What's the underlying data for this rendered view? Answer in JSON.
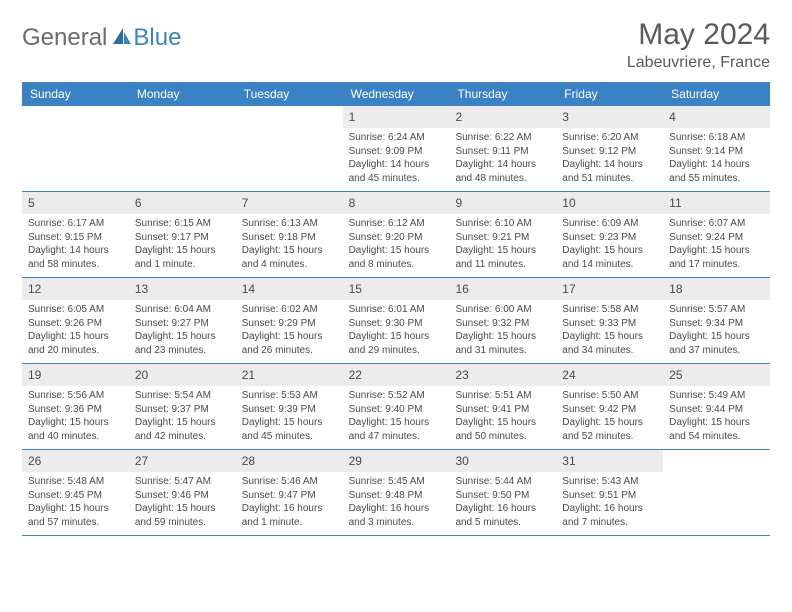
{
  "logo": {
    "part1": "General",
    "part2": "Blue"
  },
  "title": "May 2024",
  "location": "Labeuvriere, France",
  "day_headers": [
    "Sunday",
    "Monday",
    "Tuesday",
    "Wednesday",
    "Thursday",
    "Friday",
    "Saturday"
  ],
  "colors": {
    "header_bg": "#3b82c4",
    "header_text": "#ffffff",
    "daynum_bg": "#ececec",
    "text": "#4a4a4a",
    "logo_gray": "#6b6b6b",
    "logo_blue": "#3b82c4",
    "border": "#3b82c4"
  },
  "weeks": [
    [
      {
        "n": "",
        "sr": "",
        "ss": "",
        "dl": ""
      },
      {
        "n": "",
        "sr": "",
        "ss": "",
        "dl": ""
      },
      {
        "n": "",
        "sr": "",
        "ss": "",
        "dl": ""
      },
      {
        "n": "1",
        "sr": "Sunrise: 6:24 AM",
        "ss": "Sunset: 9:09 PM",
        "dl": "Daylight: 14 hours and 45 minutes."
      },
      {
        "n": "2",
        "sr": "Sunrise: 6:22 AM",
        "ss": "Sunset: 9:11 PM",
        "dl": "Daylight: 14 hours and 48 minutes."
      },
      {
        "n": "3",
        "sr": "Sunrise: 6:20 AM",
        "ss": "Sunset: 9:12 PM",
        "dl": "Daylight: 14 hours and 51 minutes."
      },
      {
        "n": "4",
        "sr": "Sunrise: 6:18 AM",
        "ss": "Sunset: 9:14 PM",
        "dl": "Daylight: 14 hours and 55 minutes."
      }
    ],
    [
      {
        "n": "5",
        "sr": "Sunrise: 6:17 AM",
        "ss": "Sunset: 9:15 PM",
        "dl": "Daylight: 14 hours and 58 minutes."
      },
      {
        "n": "6",
        "sr": "Sunrise: 6:15 AM",
        "ss": "Sunset: 9:17 PM",
        "dl": "Daylight: 15 hours and 1 minute."
      },
      {
        "n": "7",
        "sr": "Sunrise: 6:13 AM",
        "ss": "Sunset: 9:18 PM",
        "dl": "Daylight: 15 hours and 4 minutes."
      },
      {
        "n": "8",
        "sr": "Sunrise: 6:12 AM",
        "ss": "Sunset: 9:20 PM",
        "dl": "Daylight: 15 hours and 8 minutes."
      },
      {
        "n": "9",
        "sr": "Sunrise: 6:10 AM",
        "ss": "Sunset: 9:21 PM",
        "dl": "Daylight: 15 hours and 11 minutes."
      },
      {
        "n": "10",
        "sr": "Sunrise: 6:09 AM",
        "ss": "Sunset: 9:23 PM",
        "dl": "Daylight: 15 hours and 14 minutes."
      },
      {
        "n": "11",
        "sr": "Sunrise: 6:07 AM",
        "ss": "Sunset: 9:24 PM",
        "dl": "Daylight: 15 hours and 17 minutes."
      }
    ],
    [
      {
        "n": "12",
        "sr": "Sunrise: 6:05 AM",
        "ss": "Sunset: 9:26 PM",
        "dl": "Daylight: 15 hours and 20 minutes."
      },
      {
        "n": "13",
        "sr": "Sunrise: 6:04 AM",
        "ss": "Sunset: 9:27 PM",
        "dl": "Daylight: 15 hours and 23 minutes."
      },
      {
        "n": "14",
        "sr": "Sunrise: 6:02 AM",
        "ss": "Sunset: 9:29 PM",
        "dl": "Daylight: 15 hours and 26 minutes."
      },
      {
        "n": "15",
        "sr": "Sunrise: 6:01 AM",
        "ss": "Sunset: 9:30 PM",
        "dl": "Daylight: 15 hours and 29 minutes."
      },
      {
        "n": "16",
        "sr": "Sunrise: 6:00 AM",
        "ss": "Sunset: 9:32 PM",
        "dl": "Daylight: 15 hours and 31 minutes."
      },
      {
        "n": "17",
        "sr": "Sunrise: 5:58 AM",
        "ss": "Sunset: 9:33 PM",
        "dl": "Daylight: 15 hours and 34 minutes."
      },
      {
        "n": "18",
        "sr": "Sunrise: 5:57 AM",
        "ss": "Sunset: 9:34 PM",
        "dl": "Daylight: 15 hours and 37 minutes."
      }
    ],
    [
      {
        "n": "19",
        "sr": "Sunrise: 5:56 AM",
        "ss": "Sunset: 9:36 PM",
        "dl": "Daylight: 15 hours and 40 minutes."
      },
      {
        "n": "20",
        "sr": "Sunrise: 5:54 AM",
        "ss": "Sunset: 9:37 PM",
        "dl": "Daylight: 15 hours and 42 minutes."
      },
      {
        "n": "21",
        "sr": "Sunrise: 5:53 AM",
        "ss": "Sunset: 9:39 PM",
        "dl": "Daylight: 15 hours and 45 minutes."
      },
      {
        "n": "22",
        "sr": "Sunrise: 5:52 AM",
        "ss": "Sunset: 9:40 PM",
        "dl": "Daylight: 15 hours and 47 minutes."
      },
      {
        "n": "23",
        "sr": "Sunrise: 5:51 AM",
        "ss": "Sunset: 9:41 PM",
        "dl": "Daylight: 15 hours and 50 minutes."
      },
      {
        "n": "24",
        "sr": "Sunrise: 5:50 AM",
        "ss": "Sunset: 9:42 PM",
        "dl": "Daylight: 15 hours and 52 minutes."
      },
      {
        "n": "25",
        "sr": "Sunrise: 5:49 AM",
        "ss": "Sunset: 9:44 PM",
        "dl": "Daylight: 15 hours and 54 minutes."
      }
    ],
    [
      {
        "n": "26",
        "sr": "Sunrise: 5:48 AM",
        "ss": "Sunset: 9:45 PM",
        "dl": "Daylight: 15 hours and 57 minutes."
      },
      {
        "n": "27",
        "sr": "Sunrise: 5:47 AM",
        "ss": "Sunset: 9:46 PM",
        "dl": "Daylight: 15 hours and 59 minutes."
      },
      {
        "n": "28",
        "sr": "Sunrise: 5:46 AM",
        "ss": "Sunset: 9:47 PM",
        "dl": "Daylight: 16 hours and 1 minute."
      },
      {
        "n": "29",
        "sr": "Sunrise: 5:45 AM",
        "ss": "Sunset: 9:48 PM",
        "dl": "Daylight: 16 hours and 3 minutes."
      },
      {
        "n": "30",
        "sr": "Sunrise: 5:44 AM",
        "ss": "Sunset: 9:50 PM",
        "dl": "Daylight: 16 hours and 5 minutes."
      },
      {
        "n": "31",
        "sr": "Sunrise: 5:43 AM",
        "ss": "Sunset: 9:51 PM",
        "dl": "Daylight: 16 hours and 7 minutes."
      },
      {
        "n": "",
        "sr": "",
        "ss": "",
        "dl": ""
      }
    ]
  ]
}
